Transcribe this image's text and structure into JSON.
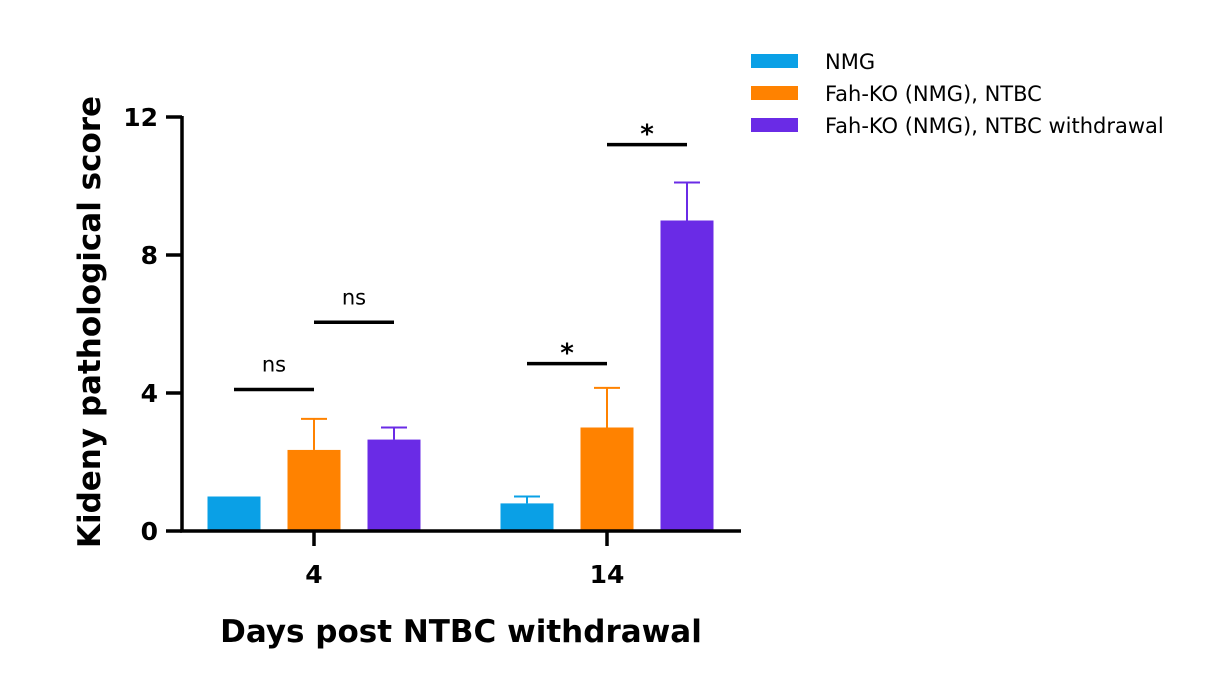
{
  "chart_data": {
    "type": "bar",
    "title": "",
    "xlabel": "Days post NTBC withdrawal",
    "ylabel": "Kideny pathological score",
    "ylim": [
      0,
      12
    ],
    "yticks": [
      0,
      4,
      8,
      12
    ],
    "categories": [
      "4",
      "14"
    ],
    "grid": false,
    "legend_position": "top-right",
    "series": [
      {
        "name": "NMG",
        "color": "#0aa0e6",
        "values": [
          1.0,
          0.8
        ],
        "errors": [
          0.0,
          0.2
        ]
      },
      {
        "name": "Fah-KO (NMG), NTBC",
        "color": "#ff8200",
        "values": [
          2.35,
          3.0
        ],
        "errors": [
          0.9,
          1.15
        ]
      },
      {
        "name": "Fah-KO (NMG), NTBC withdrawal",
        "color": "#6a2be6",
        "values": [
          2.65,
          9.0
        ],
        "errors": [
          0.35,
          1.1
        ]
      }
    ],
    "annotations": [
      {
        "category": "4",
        "between": [
          0,
          1
        ],
        "text": "ns",
        "y": 4.1
      },
      {
        "category": "4",
        "between": [
          1,
          2
        ],
        "text": "ns",
        "y": 6.05
      },
      {
        "category": "14",
        "between": [
          0,
          1
        ],
        "text": "*",
        "y": 4.85
      },
      {
        "category": "14",
        "between": [
          1,
          2
        ],
        "text": "*",
        "y": 11.2
      }
    ]
  }
}
